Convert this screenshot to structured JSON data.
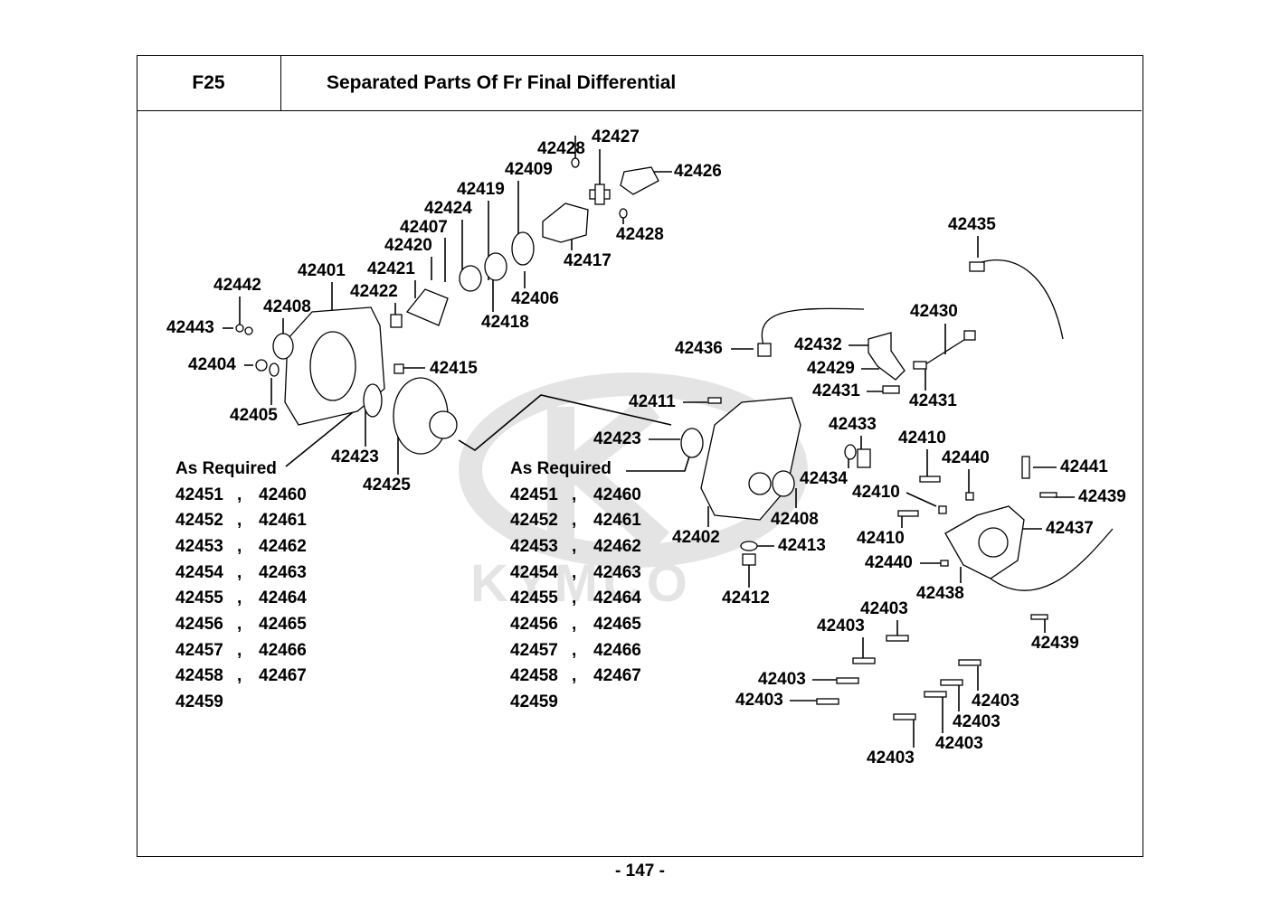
{
  "header": {
    "code": "F25",
    "title": "Separated Parts Of Fr Final Differential"
  },
  "watermark": "KYMCO",
  "callouts": [
    "42428",
    "42427",
    "42426",
    "42409",
    "42419",
    "42424",
    "42407",
    "42420",
    "42421",
    "42401",
    "42442",
    "42422",
    "42408",
    "42443",
    "42428",
    "42417",
    "42406",
    "42418",
    "42404",
    "42415",
    "42405",
    "42423",
    "42425",
    "42435",
    "42430",
    "42436",
    "42432",
    "42429",
    "42431",
    "42431",
    "42411",
    "42423",
    "42433",
    "42410",
    "42440",
    "42441",
    "42434",
    "42410",
    "42439",
    "42408",
    "42437",
    "42402",
    "42410",
    "42413",
    "42440",
    "42438",
    "42412",
    "42403",
    "42403",
    "42439",
    "42403",
    "42403",
    "42403",
    "42403",
    "42403",
    "42403"
  ],
  "as_required_left": {
    "label": "As Required",
    "rows": [
      [
        "42451",
        ",",
        "42460"
      ],
      [
        "42452",
        ",",
        "42461"
      ],
      [
        "42453",
        ",",
        "42462"
      ],
      [
        "42454",
        ",",
        "42463"
      ],
      [
        "42455",
        ",",
        "42464"
      ],
      [
        "42456",
        ",",
        "42465"
      ],
      [
        "42457",
        ",",
        "42466"
      ],
      [
        "42458",
        ",",
        "42467"
      ],
      [
        "42459",
        "",
        ""
      ]
    ]
  },
  "as_required_right": {
    "label": "As Required",
    "rows": [
      [
        "42451",
        ",",
        "42460"
      ],
      [
        "42452",
        ",",
        "42461"
      ],
      [
        "42453",
        ",",
        "42462"
      ],
      [
        "42454",
        ",",
        "42463"
      ],
      [
        "42455",
        ",",
        "42464"
      ],
      [
        "42456",
        ",",
        "42465"
      ],
      [
        "42457",
        ",",
        "42466"
      ],
      [
        "42458",
        ",",
        "42467"
      ],
      [
        "42459",
        "",
        ""
      ]
    ]
  },
  "page_number": "- 147 -"
}
